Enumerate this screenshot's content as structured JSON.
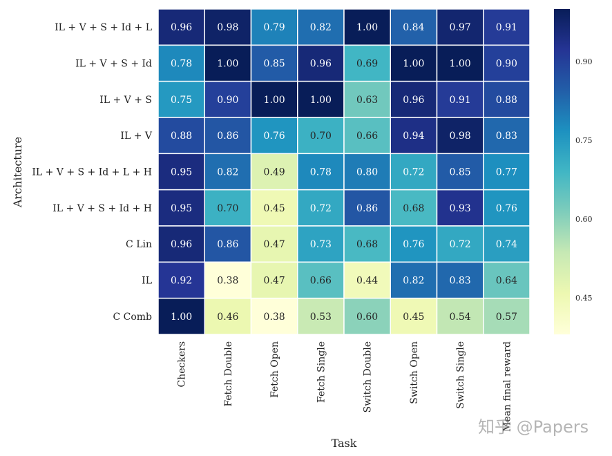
{
  "chart_data": {
    "type": "heatmap",
    "xlabel": "Task",
    "ylabel": "Architecture",
    "x_categories": [
      "Checkers",
      "Fetch Double",
      "Fetch Open",
      "Fetch Single",
      "Switch Double",
      "Switch Open",
      "Switch Single",
      "Mean final reward"
    ],
    "y_categories": [
      "IL + V + S + Id + L",
      "IL + V + S + Id",
      "IL + V + S",
      "IL + V",
      "IL + V + S + Id + L + H",
      "IL + V + S + Id + H",
      "C Lin",
      "IL",
      "C Comb"
    ],
    "values": [
      [
        0.96,
        0.98,
        0.79,
        0.82,
        1.0,
        0.84,
        0.97,
        0.91
      ],
      [
        0.78,
        1.0,
        0.85,
        0.96,
        0.69,
        1.0,
        1.0,
        0.9
      ],
      [
        0.75,
        0.9,
        1.0,
        1.0,
        0.63,
        0.96,
        0.91,
        0.88
      ],
      [
        0.88,
        0.86,
        0.76,
        0.7,
        0.66,
        0.94,
        0.98,
        0.83
      ],
      [
        0.95,
        0.82,
        0.49,
        0.78,
        0.8,
        0.72,
        0.85,
        0.77
      ],
      [
        0.95,
        0.7,
        0.45,
        0.72,
        0.86,
        0.68,
        0.93,
        0.76
      ],
      [
        0.96,
        0.86,
        0.47,
        0.73,
        0.68,
        0.76,
        0.72,
        0.74
      ],
      [
        0.92,
        0.38,
        0.47,
        0.66,
        0.44,
        0.82,
        0.83,
        0.64
      ],
      [
        1.0,
        0.46,
        0.38,
        0.53,
        0.6,
        0.45,
        0.54,
        0.57
      ]
    ],
    "colormap": "YlGnBu",
    "colorbar": {
      "range": [
        0.38,
        1.0
      ],
      "ticks": [
        "0.45",
        "0.60",
        "0.75",
        "0.90"
      ]
    },
    "annotated": true
  },
  "watermark": "知乎 @Papers"
}
